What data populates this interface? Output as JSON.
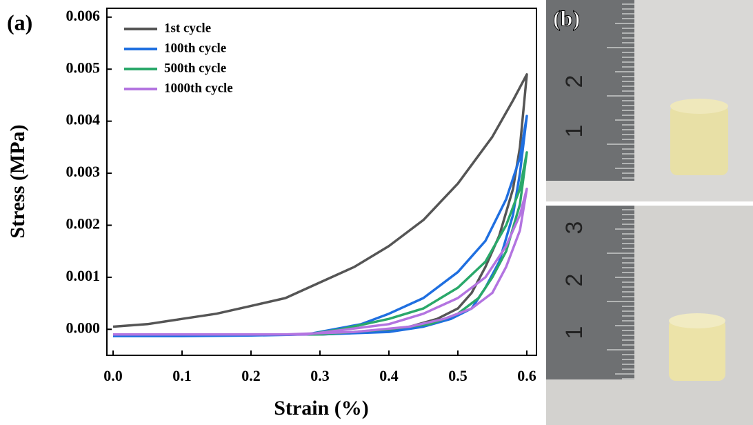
{
  "chart_data": {
    "type": "line",
    "panel_label": "(a)",
    "x_label": "Strain (%)",
    "y_label": "Stress (MPa)",
    "xlim": [
      -0.009,
      0.614
    ],
    "ylim": [
      -0.0005,
      0.00617
    ],
    "xticks": [
      {
        "value": 0,
        "label": "0.0"
      },
      0.1,
      0.2,
      0.3,
      0.4,
      0.5,
      0.6
    ],
    "yticks": [
      {
        "value": 0,
        "label": "0.000"
      },
      0.001,
      0.002,
      0.003,
      0.004,
      0.005,
      0.006
    ],
    "legend": "upper left",
    "series": [
      {
        "name": "1st cycle",
        "color": "#555555",
        "x": [
          0,
          0.05,
          0.1,
          0.15,
          0.2,
          0.25,
          0.3,
          0.35,
          0.4,
          0.45,
          0.5,
          0.55,
          0.58,
          0.6,
          0.59,
          0.58,
          0.56,
          0.54,
          0.52,
          0.5,
          0.47,
          0.43,
          0.38,
          0.3,
          0.2,
          0.1,
          0
        ],
        "values": [
          5e-05,
          0.0001,
          0.0002,
          0.0003,
          0.00045,
          0.0006,
          0.0009,
          0.0012,
          0.0016,
          0.0021,
          0.0028,
          0.0037,
          0.0044,
          0.0049,
          0.0035,
          0.0027,
          0.0018,
          0.0012,
          0.0007,
          0.0004,
          0.0002,
          5e-05,
          -5e-05,
          -0.0001,
          -0.0001,
          -0.0001,
          -0.0001
        ]
      },
      {
        "name": "100th cycle",
        "color": "#1f6fe0",
        "x": [
          0,
          0.1,
          0.2,
          0.28,
          0.32,
          0.36,
          0.4,
          0.45,
          0.5,
          0.54,
          0.57,
          0.59,
          0.6,
          0.59,
          0.58,
          0.56,
          0.54,
          0.52,
          0.49,
          0.45,
          0.4,
          0.3,
          0
        ],
        "values": [
          -0.00013,
          -0.00013,
          -0.00012,
          -0.0001,
          0,
          0.0001,
          0.0003,
          0.0006,
          0.0011,
          0.0017,
          0.0025,
          0.0033,
          0.0041,
          0.003,
          0.0022,
          0.0013,
          0.0008,
          0.0004,
          0.0002,
          5e-05,
          -5e-05,
          -0.0001,
          -0.00012
        ]
      },
      {
        "name": "500th cycle",
        "color": "#2aa86a",
        "x": [
          0,
          0.2,
          0.28,
          0.33,
          0.4,
          0.45,
          0.5,
          0.54,
          0.57,
          0.59,
          0.6,
          0.59,
          0.57,
          0.55,
          0.53,
          0.5,
          0.46,
          0.4,
          0.3,
          0
        ],
        "values": [
          -0.0001,
          -0.0001,
          -0.0001,
          0,
          0.0002,
          0.0004,
          0.0008,
          0.0013,
          0.002,
          0.0027,
          0.0034,
          0.0024,
          0.0015,
          0.001,
          0.0006,
          0.0003,
          0.0001,
          0,
          -0.0001,
          -0.0001
        ]
      },
      {
        "name": "1000th cycle",
        "color": "#b374e0",
        "x": [
          0,
          0.28,
          0.34,
          0.4,
          0.45,
          0.5,
          0.54,
          0.57,
          0.59,
          0.6,
          0.59,
          0.57,
          0.55,
          0.52,
          0.48,
          0.43,
          0.35,
          0.25,
          0
        ],
        "values": [
          -0.0001,
          -0.0001,
          0,
          0.0001,
          0.0003,
          0.0006,
          0.001,
          0.0016,
          0.0022,
          0.0027,
          0.0019,
          0.0012,
          0.0007,
          0.0004,
          0.0002,
          5e-05,
          -5e-05,
          -0.0001,
          -0.0001
        ]
      }
    ]
  },
  "photos": {
    "panel_label": "(b)",
    "top_ruler": [
      "2",
      "1"
    ],
    "bottom_ruler": [
      "3",
      "2",
      "1"
    ]
  }
}
